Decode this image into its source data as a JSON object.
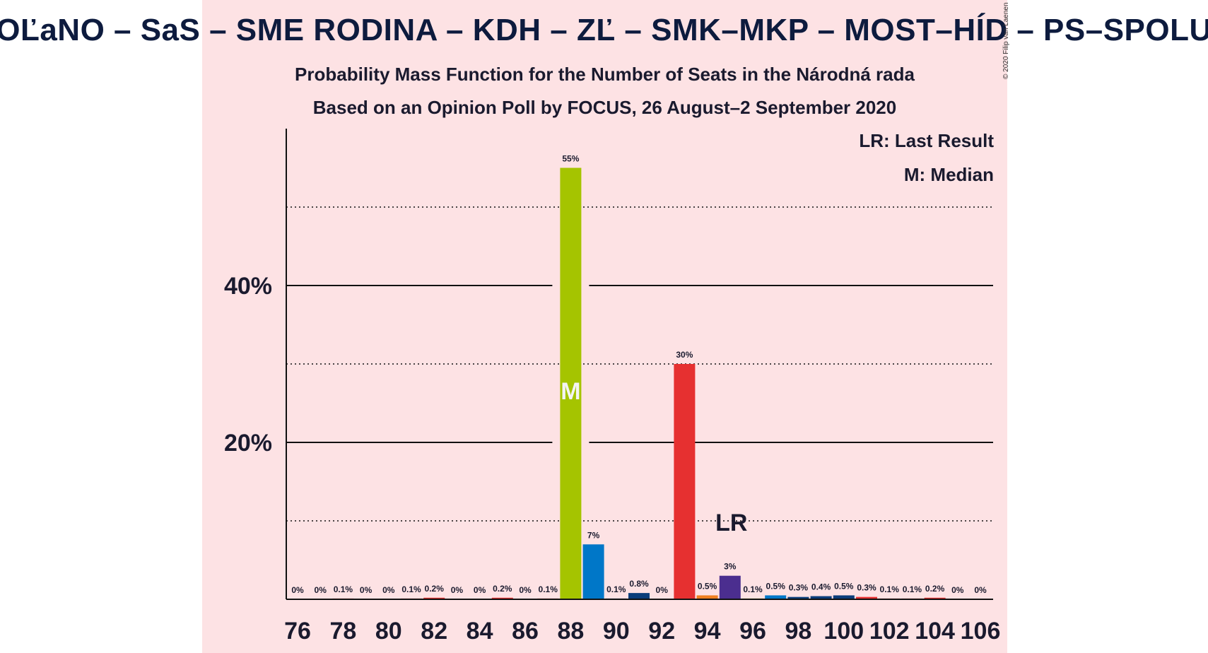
{
  "title": "OĽaNO – SaS – SME RODINA – KDH – ZĽ – SMK–MKP – MOST–HÍD – PS–SPOLU",
  "subtitle": "Probability Mass Function for the Number of Seats in the Národná rada",
  "subtitle2": "Based on an Opinion Poll by FOCUS, 26 August–2 September 2020",
  "copyright": "© 2020 Filip van Laenen",
  "legend": {
    "last_result": "LR: Last Result",
    "median": "M: Median"
  },
  "colors": {
    "background": "#fde2e4",
    "olano_green": "#a5c400",
    "sas_blue": "#0077c8",
    "navy": "#0b3d7a",
    "red": "#e63030",
    "orange": "#f08020",
    "purple": "#4b2e8f",
    "dark": "#1a1a2e"
  },
  "chart_data": {
    "type": "bar",
    "x": [
      76,
      77,
      78,
      79,
      80,
      81,
      82,
      83,
      84,
      85,
      86,
      87,
      88,
      89,
      90,
      91,
      92,
      93,
      94,
      95,
      96,
      97,
      98,
      99,
      100,
      101,
      102,
      103,
      104,
      105,
      106
    ],
    "values": [
      0,
      0,
      0.1,
      0,
      0,
      0.1,
      0.2,
      0,
      0,
      0.2,
      0,
      0.1,
      55,
      7,
      0.1,
      0.8,
      0,
      30,
      0.5,
      3,
      0.1,
      0.5,
      0.3,
      0.4,
      0.5,
      0.3,
      0.1,
      0.1,
      0.2,
      0,
      0
    ],
    "labels": [
      "0%",
      "0%",
      "0.1%",
      "0%",
      "0%",
      "0.1%",
      "0.2%",
      "0%",
      "0%",
      "0.2%",
      "0%",
      "0.1%",
      "55%",
      "7%",
      "0.1%",
      "0.8%",
      "0%",
      "30%",
      "0.5%",
      "3%",
      "0.1%",
      "0.5%",
      "0.3%",
      "0.4%",
      "0.5%",
      "0.3%",
      "0.1%",
      "0.1%",
      "0.2%",
      "0%",
      "0%"
    ],
    "bar_colors": [
      "#e63030",
      "#e63030",
      "#e63030",
      "#e63030",
      "#e63030",
      "#e63030",
      "#e63030",
      "#e63030",
      "#e63030",
      "#e63030",
      "#e63030",
      "#e63030",
      "#a5c400",
      "#0077c8",
      "#0b3d7a",
      "#0b3d7a",
      "#e63030",
      "#e63030",
      "#f08020",
      "#4b2e8f",
      "#a5c400",
      "#0077c8",
      "#0b3d7a",
      "#0b3d7a",
      "#0b3d7a",
      "#e63030",
      "#e63030",
      "#e63030",
      "#e63030",
      "#e63030",
      "#e63030"
    ],
    "x_ticks": [
      76,
      78,
      80,
      82,
      84,
      86,
      88,
      90,
      92,
      94,
      96,
      98,
      100,
      102,
      104,
      106
    ],
    "y_ticks": [
      20,
      40
    ],
    "y_tick_labels": [
      "20%",
      "40%"
    ],
    "y_dotted_gridlines": [
      10,
      30,
      50
    ],
    "ylim": [
      0,
      60
    ],
    "median_seat": 88,
    "median_marker": "M",
    "last_result_seat": 95,
    "last_result_marker": "LR",
    "legend_position": "top-right"
  }
}
